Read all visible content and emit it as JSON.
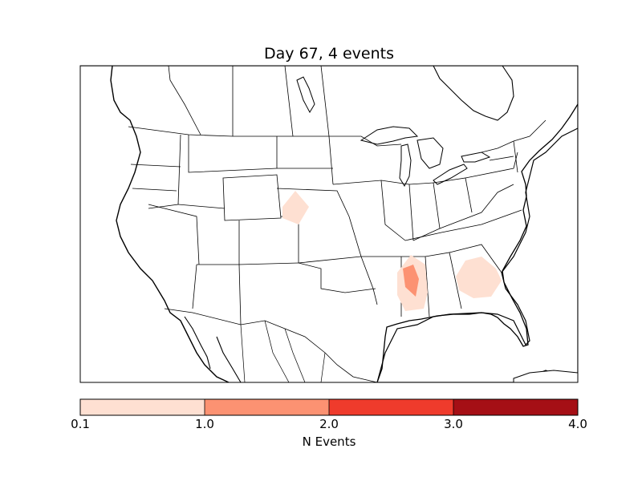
{
  "title": "Day 67, 4 events",
  "colorbar": {
    "label": "N Events",
    "ticks": [
      "0.1",
      "1.0",
      "2.0",
      "3.0",
      "4.0"
    ],
    "colors": [
      "#fee0d2",
      "#fc9272",
      "#ef3b2c",
      "#a50f15"
    ]
  },
  "map": {
    "region": "North America (CONUS)",
    "land_color": "#ffffff",
    "border_color": "#000000"
  },
  "chart_data": {
    "type": "heatmap",
    "title": "Day 67, 4 events",
    "colorbar_label": "N Events",
    "bins": [
      0.1,
      1.0,
      2.0,
      3.0,
      4.0
    ],
    "regions": [
      {
        "location": "Nebraska / Colorado border",
        "value_bin": "0.1-1.0"
      },
      {
        "location": "Mississippi / Louisiana",
        "value_bin": "0.1-1.0"
      },
      {
        "location": "Mississippi (core)",
        "value_bin": "1.0-2.0"
      },
      {
        "location": "Georgia",
        "value_bin": "0.1-1.0"
      }
    ]
  }
}
